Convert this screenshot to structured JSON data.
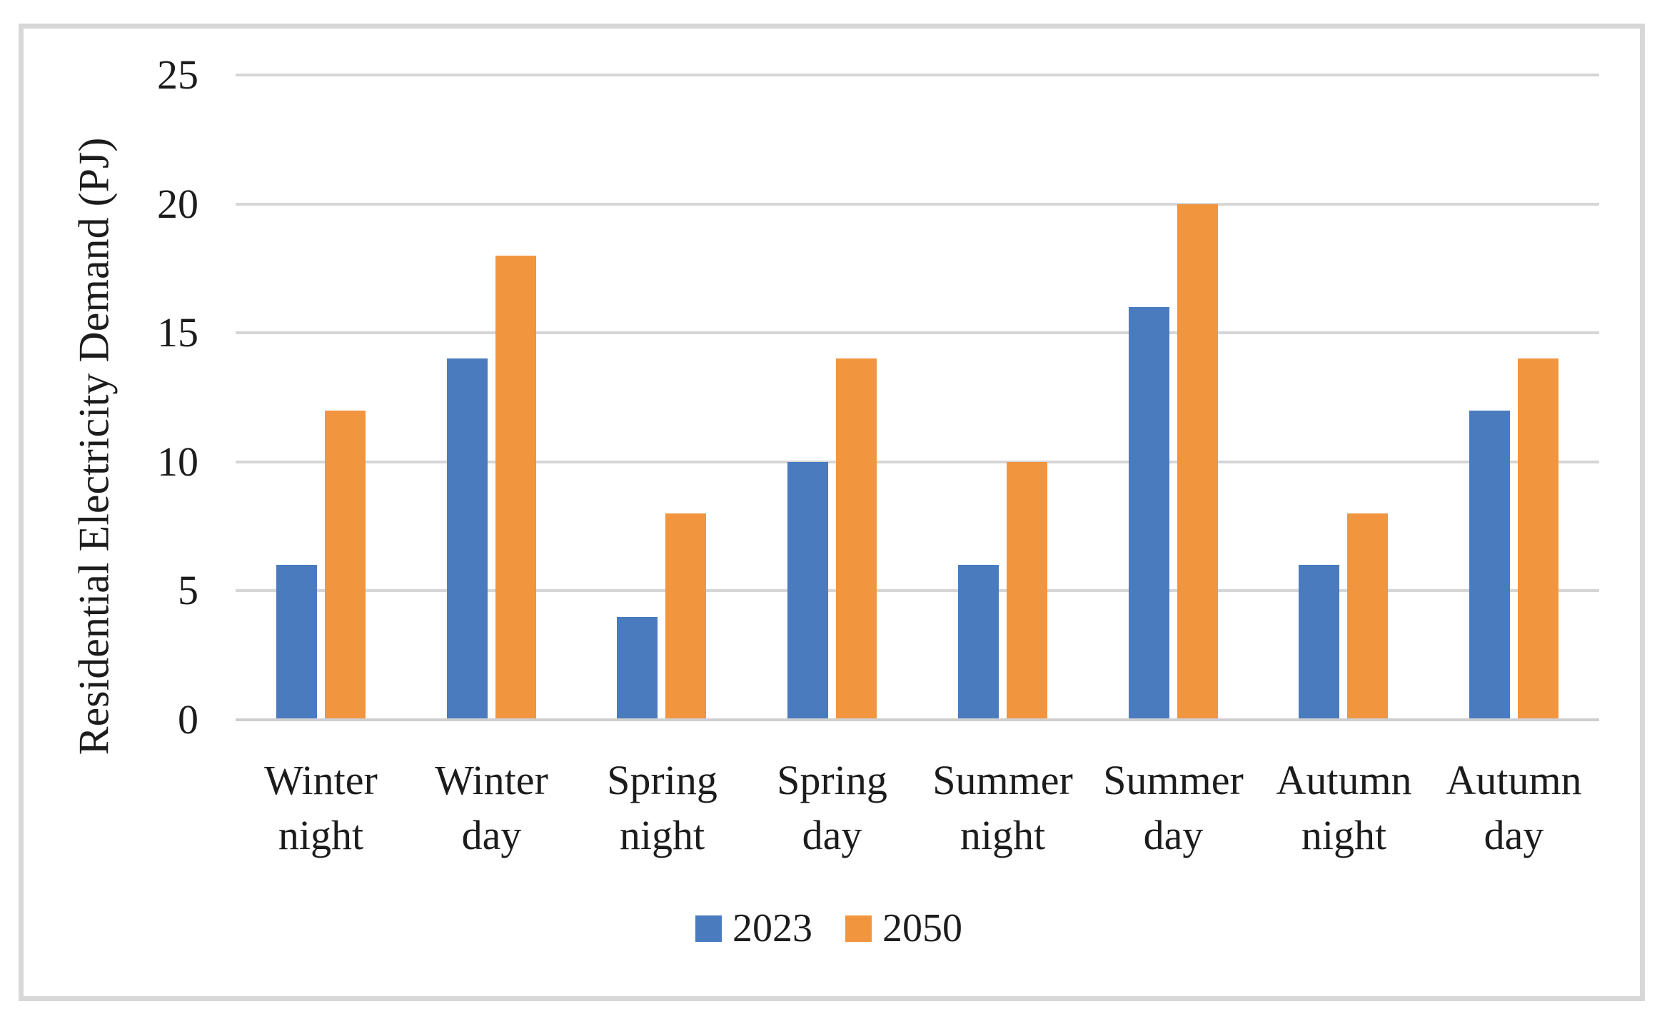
{
  "figure": {
    "background": "#ffffff",
    "frame_border_color": "#d8d8d8",
    "gridline_color": "#d6d6d6",
    "text_color": "#1c1c1c"
  },
  "chart_data": {
    "type": "bar",
    "title": "",
    "xlabel": "",
    "ylabel": "Residential Electricity Demand (PJ)",
    "ylim": [
      0,
      25
    ],
    "yticks": [
      0,
      5,
      10,
      15,
      20,
      25
    ],
    "grid": "horizontal",
    "legend_position": "bottom-center",
    "categories": [
      "Winter\nnight",
      "Winter\nday",
      "Spring\nnight",
      "Spring\nday",
      "Summer\nnight",
      "Summer\nday",
      "Autumn\nnight",
      "Autumn\nday"
    ],
    "series": [
      {
        "name": "2023",
        "color": "#4a7bbe",
        "values": [
          6,
          14,
          4,
          10,
          6,
          16,
          6,
          12
        ]
      },
      {
        "name": "2050",
        "color": "#f2953f",
        "values": [
          12,
          18,
          8,
          14,
          10,
          20,
          8,
          14
        ]
      }
    ]
  }
}
